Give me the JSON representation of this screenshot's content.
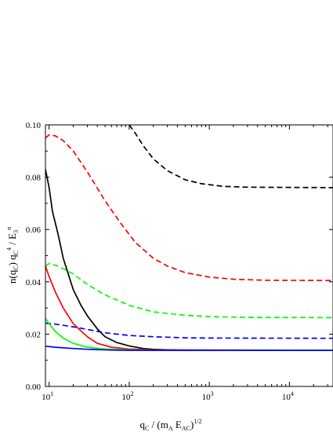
{
  "chart_data": {
    "type": "line",
    "xscale": "log",
    "xlim": [
      9,
      35000
    ],
    "ylim": [
      0.0,
      0.1
    ],
    "grid": false,
    "legend": "none",
    "xlabel": {
      "main": "q",
      "sub1": "C",
      "mid": " / (m",
      "sub2": "A",
      "mid2": " E",
      "sub3": "AC",
      "end": ")",
      "sup": "1/2"
    },
    "ylabel": {
      "p1": "n(q",
      "s1": "C",
      "p2": ")  q",
      "s2": "C",
      "sup1": "4",
      "p3": "  / E",
      "s3": "3",
      "sup2": "n"
    },
    "y_ticks": [
      {
        "value": 0.0,
        "label": "0.00"
      },
      {
        "value": 0.02,
        "label": "0.02"
      },
      {
        "value": 0.04,
        "label": "0.04"
      },
      {
        "value": 0.06,
        "label": "0.06"
      },
      {
        "value": 0.08,
        "label": "0.08"
      },
      {
        "value": 0.1,
        "label": "0.10"
      }
    ],
    "x_ticks": [
      {
        "value": 10,
        "base": "10",
        "exp": "1"
      },
      {
        "value": 100,
        "base": "10",
        "exp": "2"
      },
      {
        "value": 1000,
        "base": "10",
        "exp": "3"
      },
      {
        "value": 10000,
        "base": "10",
        "exp": "4"
      }
    ],
    "series": [
      {
        "color": "#000000",
        "dash": true,
        "points": [
          [
            100,
            0.1
          ],
          [
            115,
            0.0975
          ],
          [
            130,
            0.095
          ],
          [
            150,
            0.092
          ],
          [
            200,
            0.087
          ],
          [
            300,
            0.0825
          ],
          [
            500,
            0.079
          ],
          [
            800,
            0.0775
          ],
          [
            1500,
            0.0765
          ],
          [
            3000,
            0.0762
          ],
          [
            35000,
            0.076
          ]
        ]
      },
      {
        "color": "#ff0000",
        "dash": true,
        "points": [
          [
            9,
            0.095
          ],
          [
            10,
            0.0962
          ],
          [
            12,
            0.0958
          ],
          [
            15,
            0.094
          ],
          [
            20,
            0.09
          ],
          [
            30,
            0.082
          ],
          [
            50,
            0.071
          ],
          [
            80,
            0.062
          ],
          [
            120,
            0.055
          ],
          [
            200,
            0.049
          ],
          [
            300,
            0.046
          ],
          [
            500,
            0.0435
          ],
          [
            1000,
            0.0418
          ],
          [
            2000,
            0.041
          ],
          [
            5000,
            0.0406
          ],
          [
            35000,
            0.0405
          ]
        ]
      },
      {
        "color": "#00ff00",
        "dash": true,
        "points": [
          [
            9,
            0.046
          ],
          [
            10,
            0.047
          ],
          [
            13,
            0.046
          ],
          [
            20,
            0.043
          ],
          [
            30,
            0.039
          ],
          [
            50,
            0.035
          ],
          [
            100,
            0.031
          ],
          [
            200,
            0.0285
          ],
          [
            500,
            0.0272
          ],
          [
            1000,
            0.0267
          ],
          [
            3000,
            0.0264
          ],
          [
            35000,
            0.0263
          ]
        ]
      },
      {
        "color": "#0000ff",
        "dash": true,
        "points": [
          [
            9,
            0.0242
          ],
          [
            12,
            0.0238
          ],
          [
            20,
            0.0228
          ],
          [
            30,
            0.0218
          ],
          [
            50,
            0.0205
          ],
          [
            100,
            0.0195
          ],
          [
            200,
            0.019
          ],
          [
            500,
            0.0186
          ],
          [
            1000,
            0.0185
          ],
          [
            35000,
            0.0184
          ]
        ]
      },
      {
        "color": "#000000",
        "dash": false,
        "points": [
          [
            9,
            0.083
          ],
          [
            10,
            0.076
          ],
          [
            11,
            0.067
          ],
          [
            13,
            0.058
          ],
          [
            15,
            0.049
          ],
          [
            20,
            0.037
          ],
          [
            25,
            0.031
          ],
          [
            30,
            0.027
          ],
          [
            40,
            0.022
          ],
          [
            50,
            0.019
          ],
          [
            70,
            0.0168
          ],
          [
            100,
            0.0155
          ],
          [
            150,
            0.0145
          ],
          [
            200,
            0.0142
          ],
          [
            300,
            0.014
          ],
          [
            500,
            0.0138
          ],
          [
            35000,
            0.0138
          ]
        ]
      },
      {
        "color": "#ff0000",
        "dash": false,
        "points": [
          [
            9,
            0.046
          ],
          [
            10,
            0.042
          ],
          [
            12,
            0.036
          ],
          [
            15,
            0.03
          ],
          [
            20,
            0.024
          ],
          [
            30,
            0.019
          ],
          [
            40,
            0.0165
          ],
          [
            60,
            0.015
          ],
          [
            100,
            0.0143
          ],
          [
            200,
            0.014
          ],
          [
            35000,
            0.0138
          ]
        ]
      },
      {
        "color": "#00ff00",
        "dash": false,
        "points": [
          [
            9,
            0.026
          ],
          [
            10,
            0.024
          ],
          [
            12,
            0.021
          ],
          [
            15,
            0.0185
          ],
          [
            20,
            0.0165
          ],
          [
            30,
            0.015
          ],
          [
            50,
            0.0143
          ],
          [
            100,
            0.014
          ],
          [
            200,
            0.0138
          ],
          [
            35000,
            0.0138
          ]
        ]
      },
      {
        "color": "#0000ff",
        "dash": false,
        "points": [
          [
            9,
            0.0154
          ],
          [
            12,
            0.015
          ],
          [
            20,
            0.0145
          ],
          [
            30,
            0.0142
          ],
          [
            60,
            0.0139
          ],
          [
            100,
            0.0138
          ],
          [
            35000,
            0.0138
          ]
        ]
      }
    ]
  }
}
